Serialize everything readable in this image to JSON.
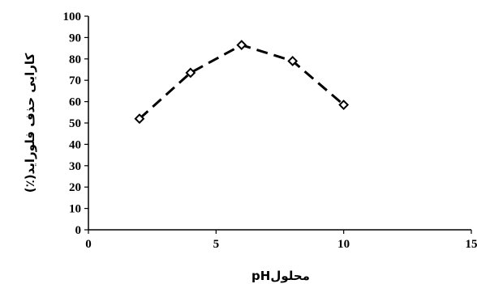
{
  "chart_data": {
    "type": "line",
    "xlabel": "محلولpH",
    "ylabel": "کارایی حذف فلوراید(٪)",
    "xlim": [
      0,
      15
    ],
    "ylim": [
      0,
      100
    ],
    "x_ticks": [
      0,
      5,
      10,
      15
    ],
    "y_ticks": [
      0,
      10,
      20,
      30,
      40,
      50,
      60,
      70,
      80,
      90,
      100
    ],
    "grid": false,
    "legend": "none",
    "series": [
      {
        "x": [
          2,
          4,
          6,
          8,
          10
        ],
        "y": [
          52,
          73.5,
          86.5,
          79,
          58.5
        ],
        "line_style": "dashed",
        "marker": "diamond",
        "color": "#000000"
      }
    ]
  }
}
